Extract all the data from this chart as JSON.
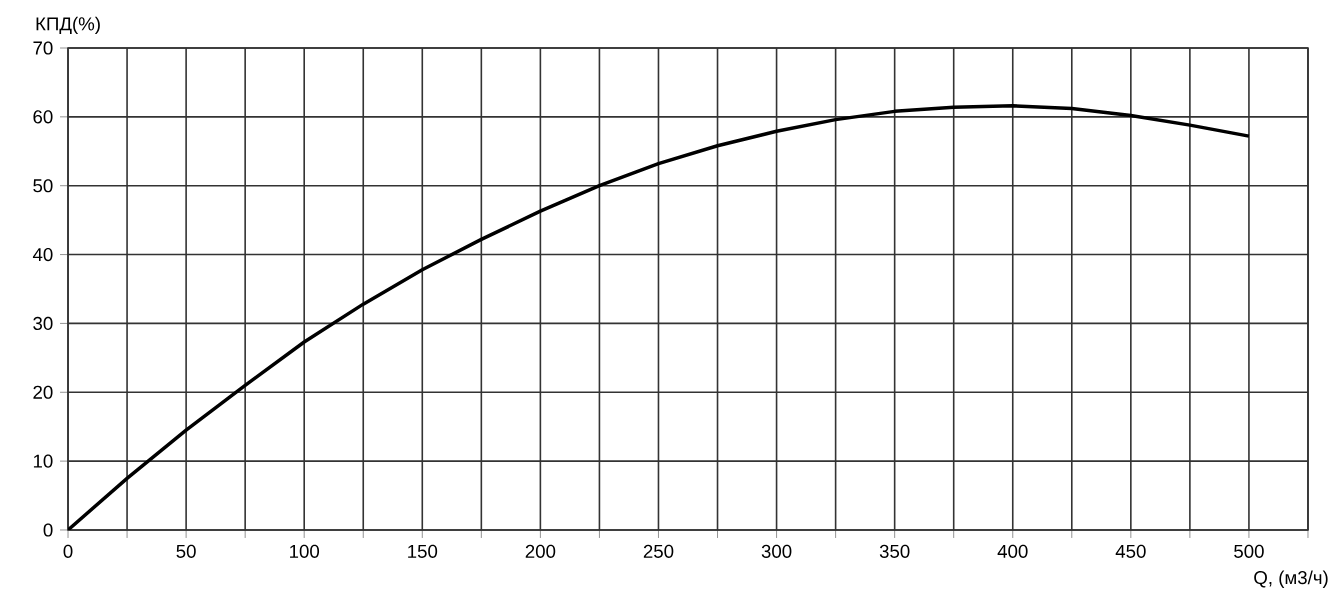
{
  "chart_data": {
    "type": "line",
    "xlabel": "Q, (м3/ч)",
    "ylabel": "КПД(%)",
    "x": [
      0,
      25,
      50,
      75,
      100,
      125,
      150,
      175,
      200,
      225,
      250,
      275,
      300,
      325,
      350,
      375,
      400,
      425,
      450,
      475,
      500
    ],
    "series": [
      {
        "color": "#000000",
        "values": [
          0,
          7.5,
          14.5,
          21,
          27.3,
          32.8,
          37.8,
          42.2,
          46.3,
          50,
          53.2,
          55.8,
          57.9,
          59.6,
          60.8,
          61.4,
          61.6,
          61.2,
          60.2,
          58.8,
          57.2
        ]
      }
    ],
    "xlim": [
      0,
      525
    ],
    "ylim": [
      0,
      70
    ],
    "xticks": [
      0,
      {
        "value": 25,
        "label": null
      },
      50,
      {
        "value": 75,
        "label": null
      },
      100,
      {
        "value": 125,
        "label": null
      },
      150,
      {
        "value": 175,
        "label": null
      },
      200,
      {
        "value": 225,
        "label": null
      },
      250,
      {
        "value": 275,
        "label": null
      },
      300,
      {
        "value": 325,
        "label": null
      },
      350,
      {
        "value": 375,
        "label": null
      },
      400,
      {
        "value": 425,
        "label": null
      },
      450,
      {
        "value": 475,
        "label": null
      },
      500,
      {
        "value": 525,
        "label": null
      }
    ],
    "yticks": [
      0,
      10,
      20,
      30,
      40,
      50,
      60,
      70
    ],
    "grid": true
  }
}
